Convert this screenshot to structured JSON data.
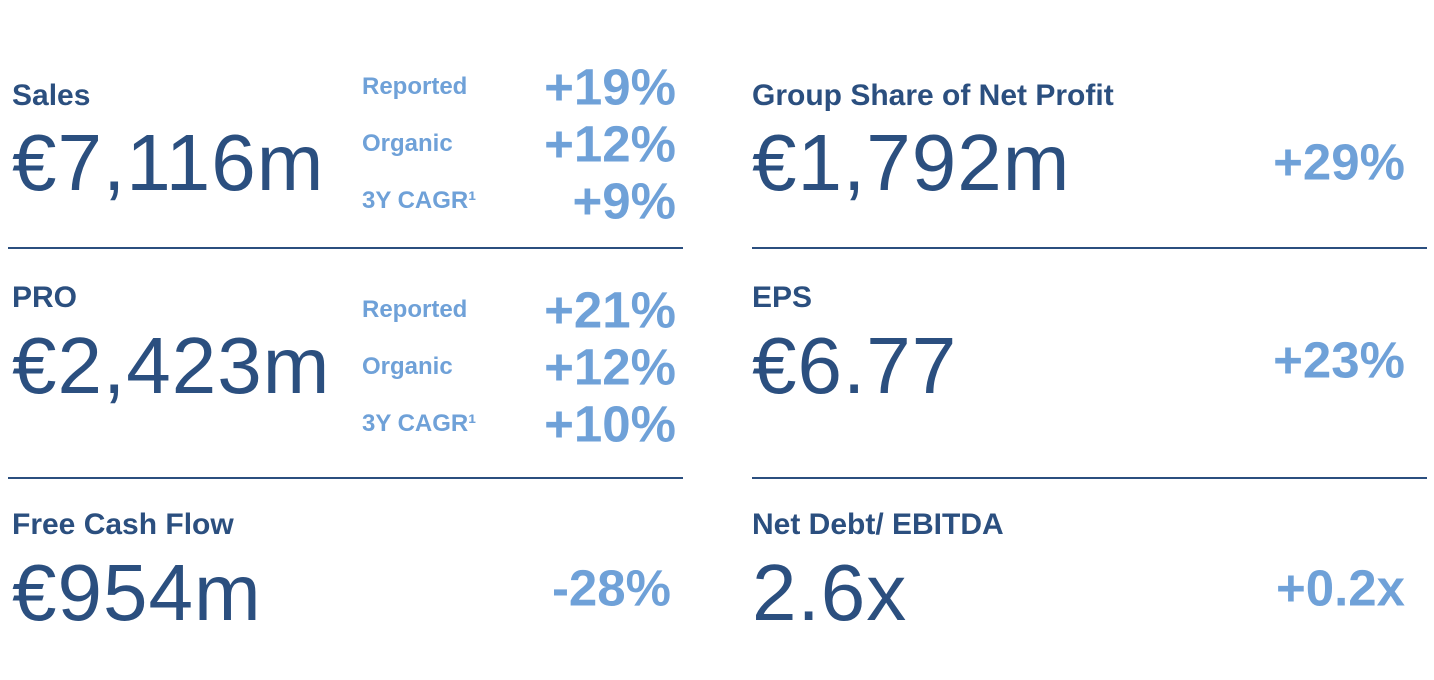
{
  "left": [
    {
      "title": "Sales",
      "value": "€7,116m",
      "breakdown": [
        {
          "label": "Reported",
          "change": "+19%"
        },
        {
          "label": "Organic",
          "change": "+12%"
        },
        {
          "label": "3Y CAGR¹",
          "change": "+9%"
        }
      ]
    },
    {
      "title": "PRO",
      "value": "€2,423m",
      "breakdown": [
        {
          "label": "Reported",
          "change": "+21%"
        },
        {
          "label": "Organic",
          "change": "+12%"
        },
        {
          "label": "3Y CAGR¹",
          "change": "+10%"
        }
      ]
    },
    {
      "title": "Free Cash Flow",
      "value": "€954m",
      "change": "-28%"
    }
  ],
  "right": [
    {
      "title": "Group Share of Net Profit",
      "value": "€1,792m",
      "change": "+29%"
    },
    {
      "title": "EPS",
      "value": "€6.77",
      "change": "+23%"
    },
    {
      "title": "Net Debt/ EBITDA",
      "value": "2.6x",
      "change": "+0.2x"
    }
  ]
}
